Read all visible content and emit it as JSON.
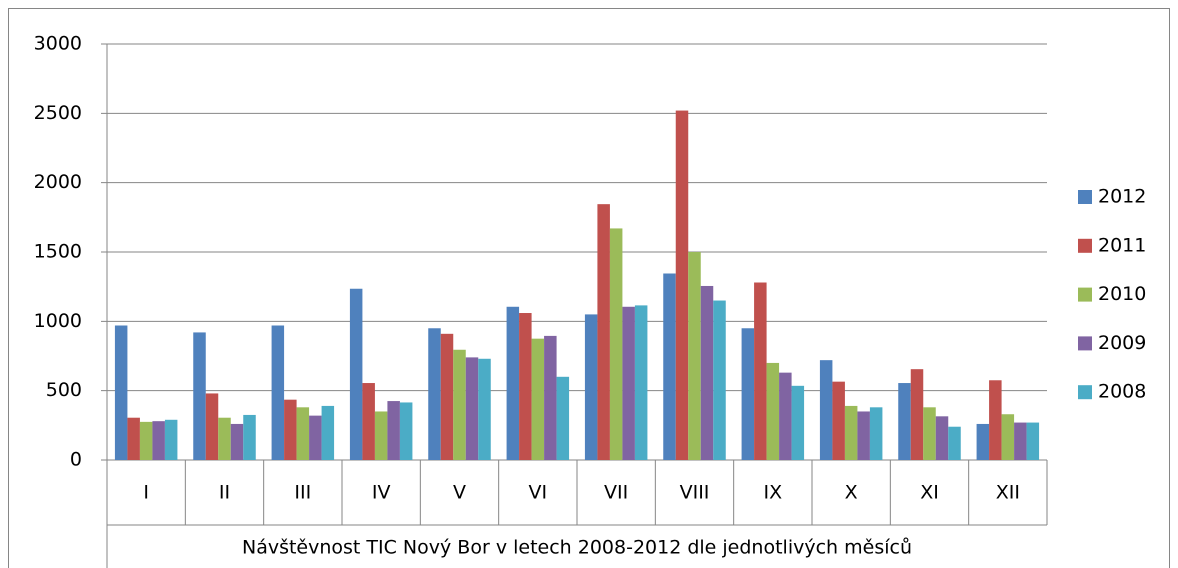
{
  "chart_data": {
    "type": "bar",
    "x_label": "Návštěvnost TIC Nový Bor v letech 2008-2012 dle jednotlivých měsíců",
    "categories": [
      "I",
      "II",
      "III",
      "IV",
      "V",
      "VI",
      "VII",
      "VIII",
      "IX",
      "X",
      "XI",
      "XII"
    ],
    "series": [
      {
        "name": "2012",
        "color": "#4f81bd",
        "values": [
          970,
          920,
          970,
          1235,
          950,
          1105,
          1050,
          1345,
          950,
          720,
          555,
          260
        ]
      },
      {
        "name": "2011",
        "color": "#c0504d",
        "values": [
          305,
          480,
          435,
          555,
          910,
          1060,
          1845,
          2520,
          1280,
          565,
          655,
          575
        ]
      },
      {
        "name": "2010",
        "color": "#9bbb59",
        "values": [
          275,
          305,
          380,
          350,
          795,
          875,
          1670,
          1500,
          700,
          390,
          380,
          330
        ]
      },
      {
        "name": "2009",
        "color": "#8064a2",
        "values": [
          280,
          260,
          320,
          425,
          740,
          895,
          1105,
          1255,
          630,
          350,
          315,
          270
        ]
      },
      {
        "name": "2008",
        "color": "#4bacc6",
        "values": [
          290,
          325,
          390,
          415,
          730,
          600,
          1115,
          1150,
          535,
          380,
          240,
          270
        ]
      }
    ],
    "ylim": [
      0,
      3000
    ],
    "yticks": [
      0,
      500,
      1000,
      1500,
      2000,
      2500,
      3000
    ],
    "grid": true,
    "legend": "right"
  }
}
